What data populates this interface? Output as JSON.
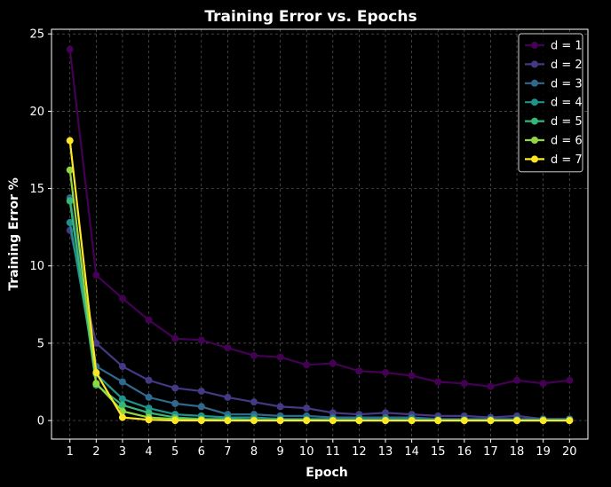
{
  "chart_data": {
    "type": "line",
    "title": "Training Error vs. Epochs",
    "xlabel": "Epoch",
    "ylabel": "Training Error %",
    "x": [
      1,
      2,
      3,
      4,
      5,
      6,
      7,
      8,
      9,
      10,
      11,
      12,
      13,
      14,
      15,
      16,
      17,
      18,
      19,
      20
    ],
    "xlim": [
      0.3,
      20.7
    ],
    "ylim": [
      -1.2,
      25.3
    ],
    "yticks": [
      0,
      5,
      10,
      15,
      20,
      25
    ],
    "grid": true,
    "legend_position": "top-right",
    "series": [
      {
        "name": "d = 1",
        "color": "#440154",
        "values": [
          24.0,
          9.4,
          7.9,
          6.5,
          5.3,
          5.2,
          4.7,
          4.2,
          4.1,
          3.6,
          3.7,
          3.2,
          3.1,
          2.9,
          2.5,
          2.4,
          2.2,
          2.6,
          2.4,
          2.6
        ]
      },
      {
        "name": "d = 2",
        "color": "#443983",
        "values": [
          12.3,
          5.0,
          3.5,
          2.6,
          2.1,
          1.9,
          1.5,
          1.2,
          0.9,
          0.8,
          0.5,
          0.4,
          0.5,
          0.4,
          0.3,
          0.3,
          0.2,
          0.3,
          0.1,
          0.1
        ]
      },
      {
        "name": "d = 3",
        "color": "#31688e",
        "values": [
          14.4,
          3.5,
          2.5,
          1.5,
          1.1,
          0.9,
          0.4,
          0.4,
          0.3,
          0.3,
          0.2,
          0.2,
          0.2,
          0.2,
          0.1,
          0.1,
          0.1,
          0.1,
          0.1,
          0.1
        ]
      },
      {
        "name": "d = 4",
        "color": "#21918c",
        "values": [
          12.8,
          3.0,
          1.4,
          0.8,
          0.4,
          0.3,
          0.2,
          0.2,
          0.1,
          0.1,
          0.1,
          0.1,
          0.1,
          0.1,
          0.05,
          0.05,
          0.05,
          0.05,
          0.05,
          0.05
        ]
      },
      {
        "name": "d = 5",
        "color": "#35b779",
        "values": [
          14.2,
          2.3,
          1.0,
          0.5,
          0.2,
          0.1,
          0.1,
          0.05,
          0.05,
          0.05,
          0.0,
          0.0,
          0.0,
          0.0,
          0.0,
          0.0,
          0.0,
          0.0,
          0.0,
          0.0
        ]
      },
      {
        "name": "d = 6",
        "color": "#90d743",
        "values": [
          16.2,
          2.4,
          0.6,
          0.2,
          0.1,
          0.05,
          0.0,
          0.0,
          0.0,
          0.0,
          0.0,
          0.0,
          0.0,
          0.0,
          0.0,
          0.0,
          0.0,
          0.0,
          0.0,
          0.0
        ]
      },
      {
        "name": "d = 7",
        "color": "#fde725",
        "values": [
          18.1,
          3.1,
          0.2,
          0.05,
          0.0,
          0.0,
          0.0,
          0.0,
          0.0,
          0.0,
          0.0,
          0.0,
          0.0,
          0.0,
          0.0,
          0.0,
          0.0,
          0.0,
          0.0,
          0.0
        ]
      }
    ]
  }
}
